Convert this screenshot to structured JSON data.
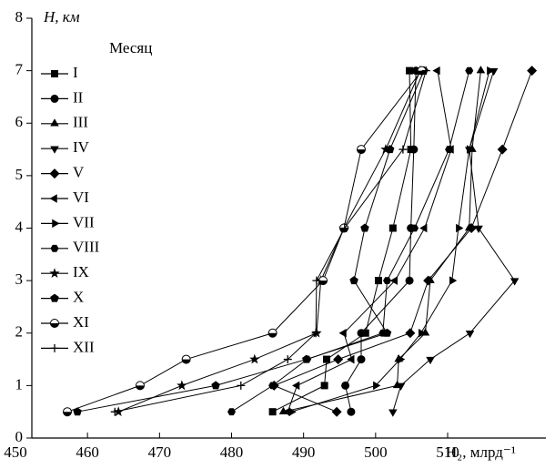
{
  "chart_data": {
    "type": "line",
    "y_label": "H, км",
    "x_label": "H₂, млрд⁻¹",
    "legend_title": "Месяц",
    "y": [
      0.5,
      1,
      1.5,
      2,
      3,
      4,
      5.5,
      7
    ],
    "xlim": [
      450,
      522
    ],
    "ylim": [
      0,
      8
    ],
    "xticks": [
      450,
      460,
      470,
      480,
      490,
      500,
      510
    ],
    "yticks": [
      0,
      1,
      2,
      3,
      4,
      5,
      6,
      7,
      8
    ],
    "series": [
      {
        "name": "I",
        "color": "#000",
        "marker": "square",
        "values": [
          485.7,
          492.9,
          493.2,
          498.6,
          500.4,
          502.4,
          504.9,
          504.7
        ]
      },
      {
        "name": "II",
        "color": "#000",
        "marker": "circle",
        "values": [
          496.6,
          495.8,
          498.0,
          498.0,
          504.7,
          504.9,
          505.3,
          505.6
        ]
      },
      {
        "name": "III",
        "color": "#000",
        "marker": "triangle-up",
        "values": [
          487.2,
          503.0,
          503.2,
          506.9,
          507.6,
          513.0,
          513.4,
          514.6
        ]
      },
      {
        "name": "IV",
        "color": "#000",
        "marker": "triangle-down",
        "values": [
          502.4,
          503.5,
          507.6,
          513.1,
          519.3,
          514.3,
          513.0,
          516.4
        ]
      },
      {
        "name": "V",
        "color": "#000",
        "marker": "diamond",
        "values": [
          494.6,
          485.9,
          494.8,
          504.8,
          507.3,
          513.3,
          517.6,
          521.7
        ]
      },
      {
        "name": "VI",
        "color": "#000",
        "marker": "triangle-left",
        "values": [
          487.8,
          489.1,
          496.7,
          495.6,
          502.7,
          506.8,
          510.5,
          508.6
        ]
      },
      {
        "name": "VII",
        "color": "#000",
        "marker": "triangle-right",
        "values": [
          488.3,
          500.0,
          503.4,
          506.3,
          510.6,
          511.5,
          513.0,
          515.8
        ]
      },
      {
        "name": "VIII",
        "color": "#000",
        "marker": "hexagon",
        "values": [
          480.0,
          485.7,
          490.5,
          501.0,
          501.6,
          505.4,
          510.2,
          513.0
        ]
      },
      {
        "name": "IX",
        "color": "#000",
        "marker": "star",
        "values": [
          464.3,
          473.1,
          483.2,
          491.8,
          492.4,
          495.6,
          501.4,
          506.2
        ]
      },
      {
        "name": "X",
        "color": "#000",
        "marker": "pentagon",
        "values": [
          458.6,
          477.8,
          490.4,
          501.6,
          497.0,
          498.5,
          502.0,
          506.7
        ]
      },
      {
        "name": "XI",
        "color": "#000",
        "marker": "half-circle",
        "values": [
          457.2,
          467.3,
          473.7,
          485.7,
          492.7,
          495.6,
          498.0,
          506.4
        ]
      },
      {
        "name": "XII",
        "color": "#000",
        "marker": "plus",
        "values": [
          463.8,
          481.3,
          487.8,
          491.7,
          491.8,
          495.7,
          503.8,
          507.0
        ]
      }
    ]
  }
}
